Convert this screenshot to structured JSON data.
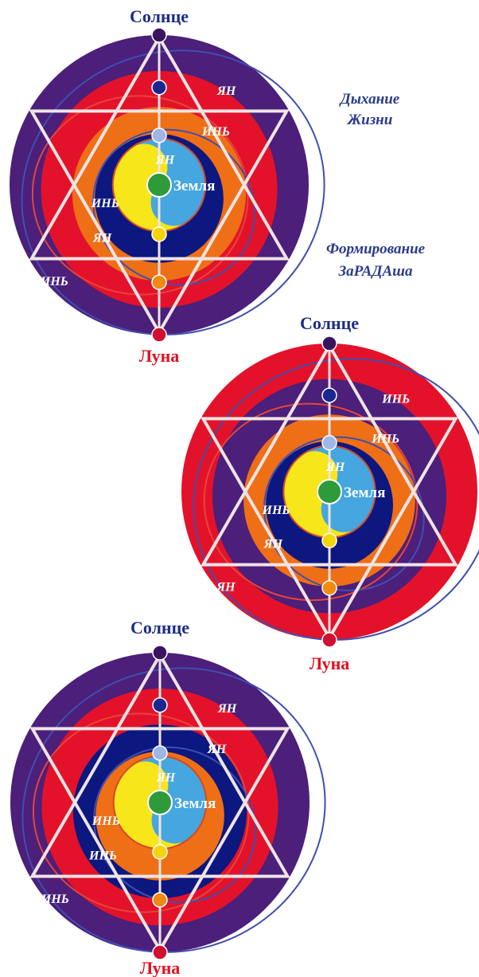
{
  "colors": {
    "purple": "#4b1f7a",
    "red": "#e3122a",
    "orange": "#ef6f16",
    "navy": "#0c1780",
    "lightblue": "#45a6e0",
    "yellow": "#f6e61a",
    "green": "#2f9a3a",
    "star": "#efe4e4",
    "sun_text": "#1d2c87",
    "moon_text": "#e01020"
  },
  "side_labels": {
    "breath": [
      "Дыхание",
      "Жизни"
    ],
    "forming": [
      "Формирование",
      "ЗаРАДАша"
    ]
  },
  "diagrams": [
    {
      "name": "diagram-1",
      "top": "Солнце",
      "bottom": "Луна",
      "center": "Земля",
      "rings": [
        "purple",
        "red",
        "orange",
        "navy"
      ],
      "yy_labels": [
        "ЯН",
        "ИНЬ",
        "ЯН",
        "ИНЬ",
        "ЯН",
        "ИНЬ"
      ]
    },
    {
      "name": "diagram-2",
      "top": "Солнце",
      "bottom": "Луна",
      "center": "Земля",
      "rings": [
        "red",
        "purple",
        "orange",
        "navy"
      ],
      "yy_labels": [
        "ИНЬ",
        "ИНЬ",
        "ЯН",
        "ИНЬ",
        "ЯН",
        "ЯН"
      ]
    },
    {
      "name": "diagram-3",
      "top": "Солнце",
      "bottom": "Луна",
      "center": "Земля",
      "rings": [
        "purple",
        "red",
        "navy",
        "orange"
      ],
      "yy_labels": [
        "ЯН",
        "ЯН",
        "ЯН",
        "ИНЬ",
        "ИНЬ",
        "ИНЬ"
      ]
    }
  ]
}
